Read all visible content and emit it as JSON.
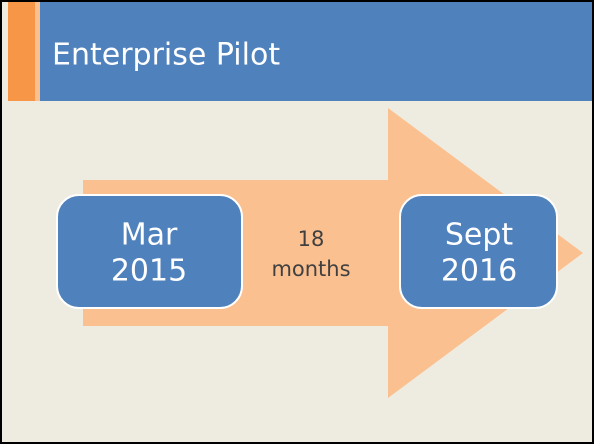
{
  "header": {
    "title": "Enterprise Pilot"
  },
  "timeline": {
    "start": {
      "lines": [
        "Mar",
        "2015"
      ]
    },
    "duration": {
      "lines": [
        "18",
        "months"
      ]
    },
    "end": {
      "lines": [
        "Sept",
        "2016"
      ]
    }
  }
}
